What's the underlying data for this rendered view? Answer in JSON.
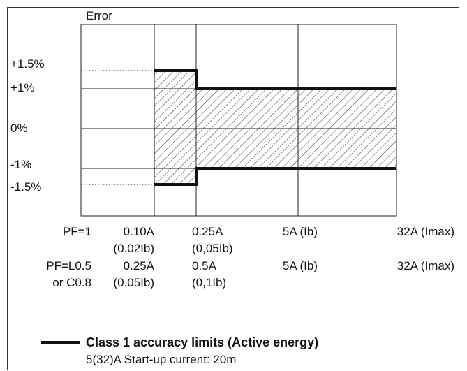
{
  "chart_data": {
    "type": "area",
    "title": "",
    "ylabel": "Error",
    "y_ticks": [
      {
        "value": 1.5,
        "label": "+1.5%"
      },
      {
        "value": 1,
        "label": "+1%"
      },
      {
        "value": 0,
        "label": "0%"
      },
      {
        "value": -1,
        "label": "-1%"
      },
      {
        "value": -1.5,
        "label": "-1.5%"
      }
    ],
    "x_axis_rows": [
      {
        "label": "PF=1",
        "ticks": [
          "0.10A",
          "0.25A",
          "5A (Ib)",
          "32A (Imax)"
        ]
      },
      {
        "label": "",
        "ticks": [
          "(0.02Ib)",
          "(0,05Ib)",
          "",
          ""
        ]
      },
      {
        "label": "PF=L0.5",
        "ticks": [
          "0.25A",
          "0.5A",
          "5A (Ib)",
          "32A (Imax)"
        ]
      },
      {
        "label": "or C0.8",
        "ticks": [
          "(0.05Ib)",
          "(0,1Ib)",
          "",
          ""
        ]
      }
    ],
    "limit_bands": [
      {
        "from_tick": 0,
        "to_tick": 1,
        "upper": 1.5,
        "lower": -1.5
      },
      {
        "from_tick": 1,
        "to_tick": 3,
        "upper": 1,
        "lower": -1
      }
    ],
    "grid": true,
    "fill_pattern": "diagonal-hatch",
    "legend": {
      "title": "Class 1 accuracy limits (Active energy)",
      "subtitle": "5(32)A Start-up current: 20m",
      "position": "bottom-left"
    },
    "colors": {
      "line": "#111111",
      "grid": "#222222",
      "hatch": "#333333"
    }
  }
}
